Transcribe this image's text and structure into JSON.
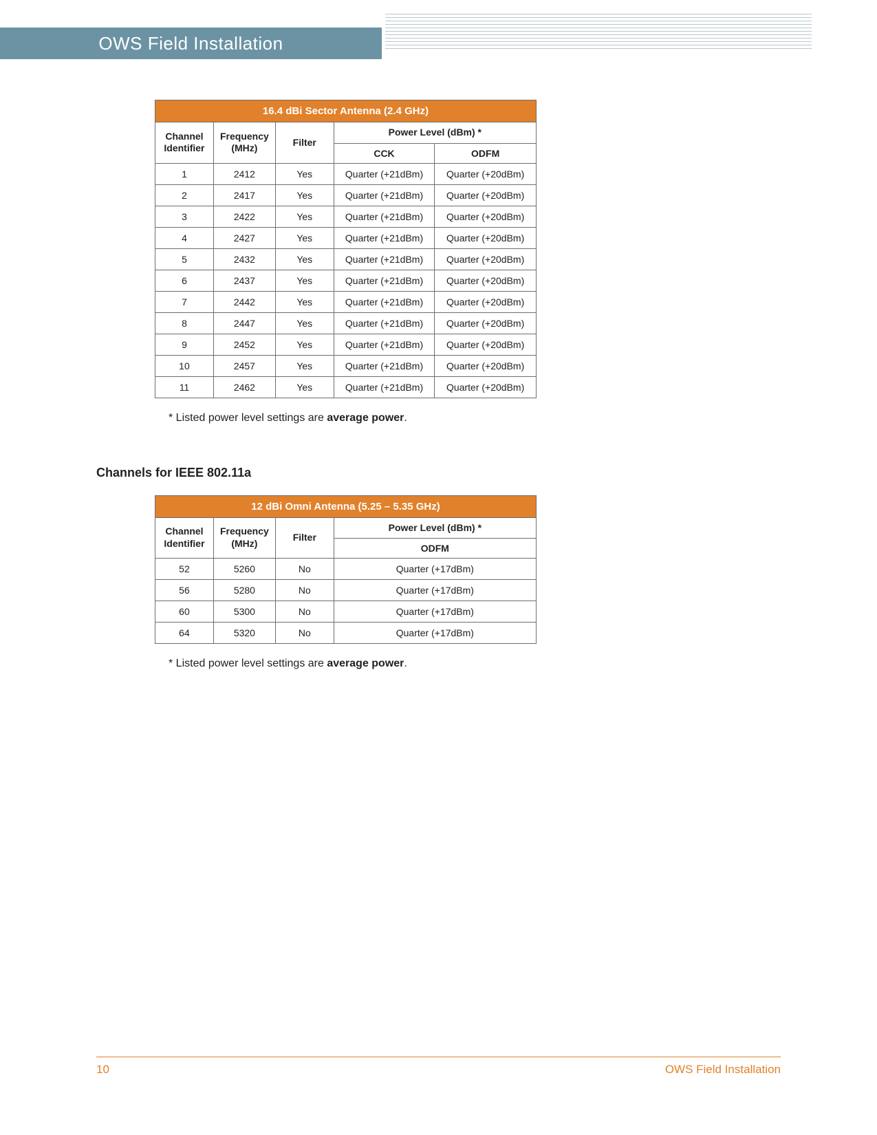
{
  "header": {
    "title": "OWS Field Installation"
  },
  "table1": {
    "title": "16.4 dBi Sector Antenna (2.4 GHz)",
    "col_channel": "Channel Identifier",
    "col_freq": "Frequency (MHz)",
    "col_filter": "Filter",
    "col_power": "Power Level (dBm) *",
    "col_cck": "CCK",
    "col_odfm": "ODFM",
    "rows": [
      {
        "ch": "1",
        "freq": "2412",
        "filter": "Yes",
        "cck": "Quarter (+21dBm)",
        "odfm": "Quarter (+20dBm)"
      },
      {
        "ch": "2",
        "freq": "2417",
        "filter": "Yes",
        "cck": "Quarter (+21dBm)",
        "odfm": "Quarter (+20dBm)"
      },
      {
        "ch": "3",
        "freq": "2422",
        "filter": "Yes",
        "cck": "Quarter (+21dBm)",
        "odfm": "Quarter (+20dBm)"
      },
      {
        "ch": "4",
        "freq": "2427",
        "filter": "Yes",
        "cck": "Quarter (+21dBm)",
        "odfm": "Quarter (+20dBm)"
      },
      {
        "ch": "5",
        "freq": "2432",
        "filter": "Yes",
        "cck": "Quarter (+21dBm)",
        "odfm": "Quarter (+20dBm)"
      },
      {
        "ch": "6",
        "freq": "2437",
        "filter": "Yes",
        "cck": "Quarter (+21dBm)",
        "odfm": "Quarter (+20dBm)"
      },
      {
        "ch": "7",
        "freq": "2442",
        "filter": "Yes",
        "cck": "Quarter (+21dBm)",
        "odfm": "Quarter (+20dBm)"
      },
      {
        "ch": "8",
        "freq": "2447",
        "filter": "Yes",
        "cck": "Quarter (+21dBm)",
        "odfm": "Quarter (+20dBm)"
      },
      {
        "ch": "9",
        "freq": "2452",
        "filter": "Yes",
        "cck": "Quarter (+21dBm)",
        "odfm": "Quarter (+20dBm)"
      },
      {
        "ch": "10",
        "freq": "2457",
        "filter": "Yes",
        "cck": "Quarter (+21dBm)",
        "odfm": "Quarter (+20dBm)"
      },
      {
        "ch": "11",
        "freq": "2462",
        "filter": "Yes",
        "cck": "Quarter (+21dBm)",
        "odfm": "Quarter (+20dBm)"
      }
    ]
  },
  "footnote1_prefix": "* Listed power level settings are ",
  "footnote1_bold": "average power",
  "footnote1_suffix": ".",
  "section_heading": "Channels for IEEE 802.11a",
  "table2": {
    "title": "12 dBi Omni Antenna (5.25 – 5.35 GHz)",
    "col_channel": "Channel Identifier",
    "col_freq": "Frequency (MHz)",
    "col_filter": "Filter",
    "col_power": "Power Level (dBm) *",
    "col_odfm": "ODFM",
    "rows": [
      {
        "ch": "52",
        "freq": "5260",
        "filter": "No",
        "odfm": "Quarter (+17dBm)"
      },
      {
        "ch": "56",
        "freq": "5280",
        "filter": "No",
        "odfm": "Quarter (+17dBm)"
      },
      {
        "ch": "60",
        "freq": "5300",
        "filter": "No",
        "odfm": "Quarter (+17dBm)"
      },
      {
        "ch": "64",
        "freq": "5320",
        "filter": "No",
        "odfm": "Quarter (+17dBm)"
      }
    ]
  },
  "footnote2_prefix": "* Listed power level settings are ",
  "footnote2_bold": "average power",
  "footnote2_suffix": ".",
  "footer": {
    "page": "10",
    "label": "OWS Field Installation"
  }
}
